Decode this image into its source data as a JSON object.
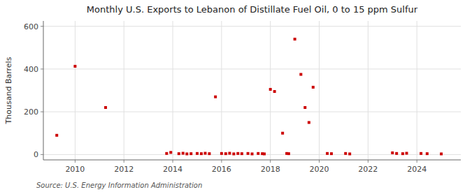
{
  "chart_data": {
    "type": "scatter",
    "title": "Monthly U.S. Exports to Lebanon of Distillate Fuel Oil, 0 to 15 ppm Sulfur",
    "y_label": "Thousand Barrels",
    "source": "Source: U.S. Energy Information Administration",
    "color": "#cc0000",
    "marker": "square",
    "grid": true,
    "xlim": [
      2008.7,
      2025.8
    ],
    "ylim": [
      -25,
      625
    ],
    "xticks": [
      2010,
      2012,
      2014,
      2016,
      2018,
      2020,
      2022,
      2024
    ],
    "yticks": [
      0,
      200,
      400,
      600
    ],
    "x": [
      2009.25,
      2010.0,
      2011.25,
      2013.75,
      2013.92,
      2014.25,
      2014.42,
      2014.58,
      2014.75,
      2015.0,
      2015.17,
      2015.33,
      2015.5,
      2015.75,
      2016.0,
      2016.17,
      2016.33,
      2016.5,
      2016.67,
      2016.83,
      2017.08,
      2017.25,
      2017.5,
      2017.67,
      2017.75,
      2018.0,
      2018.17,
      2018.5,
      2018.67,
      2018.75,
      2019.0,
      2019.25,
      2019.42,
      2019.58,
      2019.75,
      2020.33,
      2020.5,
      2021.08,
      2021.25,
      2023.0,
      2023.17,
      2023.42,
      2023.58,
      2024.17,
      2024.42,
      2025.0
    ],
    "values": [
      90,
      413,
      220,
      5,
      10,
      4,
      6,
      3,
      4,
      5,
      4,
      6,
      4,
      270,
      5,
      4,
      6,
      3,
      5,
      4,
      5,
      3,
      5,
      4,
      3,
      305,
      295,
      100,
      5,
      4,
      540,
      375,
      220,
      150,
      315,
      5,
      4,
      5,
      3,
      8,
      5,
      4,
      6,
      5,
      4,
      3
    ]
  }
}
